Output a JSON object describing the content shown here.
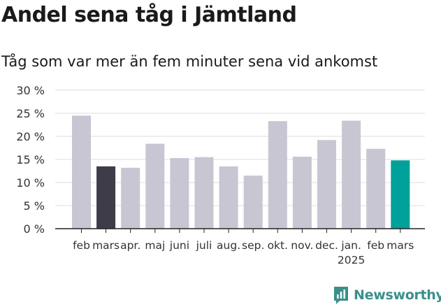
{
  "header": {
    "title": "Andel sena tåg i Jämtland",
    "subtitle": "Tåg som var mer än fem minuter sena vid ankomst"
  },
  "brand": {
    "name": "Newsworthy",
    "icon": "newsworthy-logo-icon"
  },
  "colors": {
    "default_bar": "#c8c6d3",
    "highlight_prev": "#3d3c48",
    "highlight_current": "#00a19a",
    "grid": "#dddddd",
    "brand": "#3a8f8a"
  },
  "chart_data": {
    "type": "bar",
    "title": "Andel sena tåg i Jämtland",
    "subtitle": "Tåg som var mer än fem minuter sena vid ankomst",
    "categories": [
      "feb",
      "mars",
      "apr.",
      "maj",
      "juni",
      "juli",
      "aug.",
      "sep.",
      "okt.",
      "nov.",
      "dec.",
      "jan.",
      "feb",
      "mars"
    ],
    "year_labels": [
      {
        "index": 11,
        "label": "2025"
      }
    ],
    "values": [
      24.5,
      13.5,
      13.2,
      18.4,
      15.3,
      15.5,
      13.5,
      11.5,
      23.3,
      15.6,
      19.2,
      23.4,
      17.3,
      14.8
    ],
    "highlight": {
      "1": "highlight_prev",
      "13": "highlight_current"
    },
    "ylim": [
      0,
      30
    ],
    "yticks": [
      0,
      5,
      10,
      15,
      20,
      25,
      30
    ],
    "ytick_labels": [
      "0 %",
      "5 %",
      "10 %",
      "15 %",
      "20 %",
      "25 %",
      "30 %"
    ],
    "grid": true,
    "legend": "none"
  }
}
